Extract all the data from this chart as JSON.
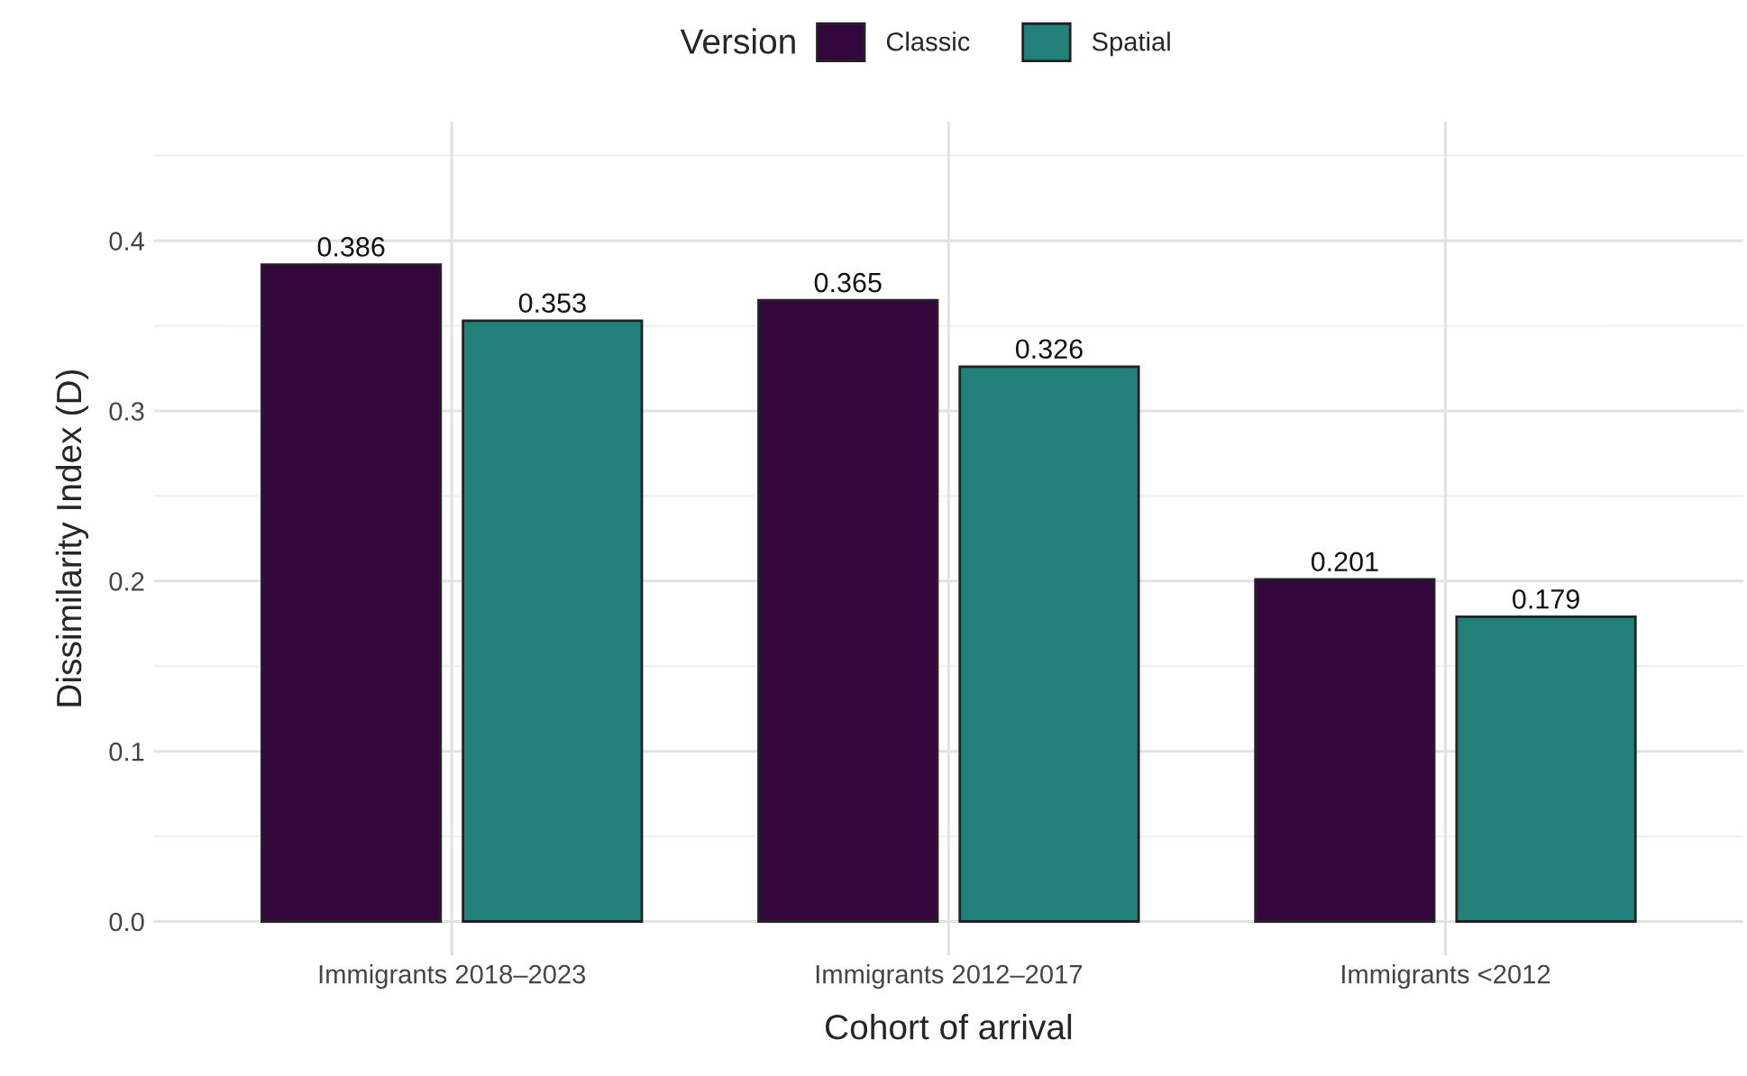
{
  "chart_data": {
    "type": "bar",
    "xlabel": "Cohort of arrival",
    "ylabel": "Dissimilarity Index (D)",
    "legend_title": "Version",
    "categories": [
      "Immigrants 2018–2023",
      "Immigrants 2012–2017",
      "Immigrants <2012"
    ],
    "series": [
      {
        "name": "Classic",
        "color": "#33063d",
        "values": [
          0.386,
          0.365,
          0.201
        ]
      },
      {
        "name": "Spatial",
        "color": "#21807a",
        "values": [
          0.353,
          0.326,
          0.179
        ]
      }
    ],
    "ylim": [
      -0.02,
      0.47
    ],
    "yticks": [
      {
        "value": 0.0,
        "label": "0.0"
      },
      {
        "value": 0.05,
        "label": null
      },
      {
        "value": 0.1,
        "label": "0.1"
      },
      {
        "value": 0.15,
        "label": null
      },
      {
        "value": 0.2,
        "label": "0.2"
      },
      {
        "value": 0.25,
        "label": null
      },
      {
        "value": 0.3,
        "label": "0.3"
      },
      {
        "value": 0.35,
        "label": null
      },
      {
        "value": 0.4,
        "label": "0.4"
      },
      {
        "value": 0.45,
        "label": null
      }
    ],
    "grid": true,
    "legend": "top",
    "data_labels": true
  }
}
